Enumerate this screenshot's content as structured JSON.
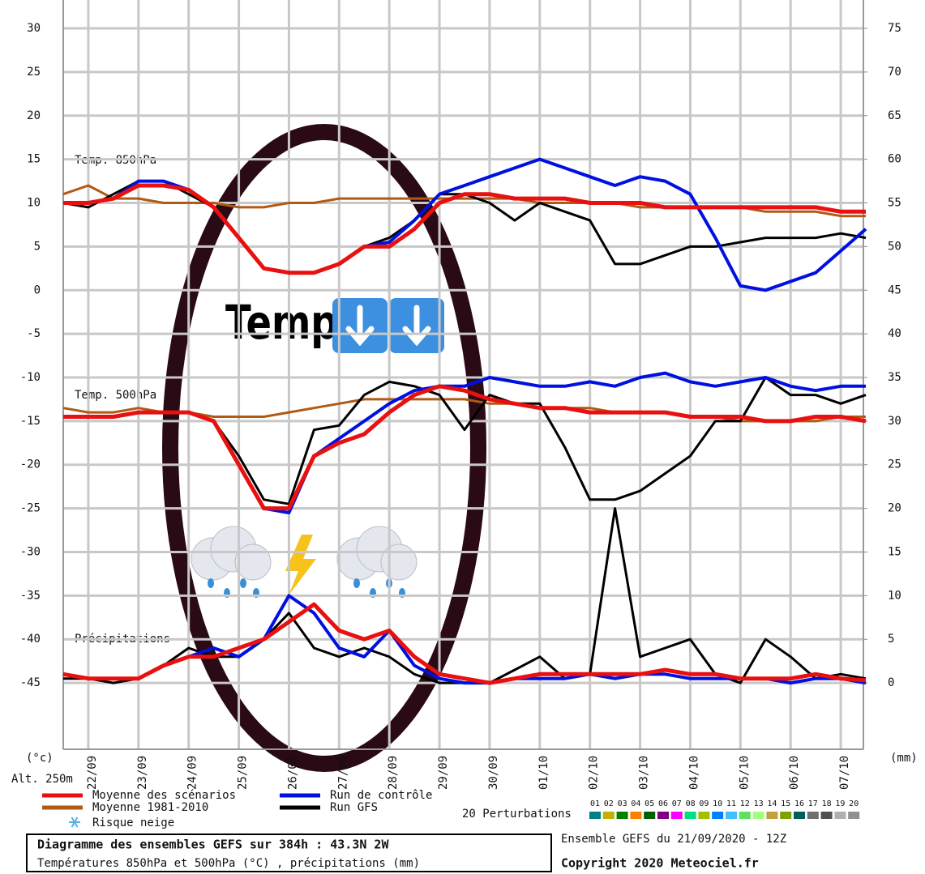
{
  "chart_data": {
    "type": "line",
    "labels": {
      "t850": "Temp. 850hPa",
      "t500": "Temp. 500hPa",
      "precip": "Précipitations",
      "y_unit": "(°c)",
      "y2_unit": "(mm)",
      "altitude": "Alt. 250m"
    },
    "annotation": "Temp",
    "x": [
      0,
      12,
      24,
      36,
      48,
      60,
      72,
      84,
      96,
      108,
      120,
      132,
      144,
      156,
      168,
      180,
      192,
      204,
      216,
      228,
      240,
      252,
      264,
      276,
      288,
      300,
      312,
      324,
      336,
      348,
      360,
      372,
      384
    ],
    "xlim": [
      0,
      384
    ],
    "xticks": [
      {
        "value": 12,
        "label": "22/09"
      },
      {
        "value": 36,
        "label": "23/09"
      },
      {
        "value": 60,
        "label": "24/09"
      },
      {
        "value": 84,
        "label": "25/09"
      },
      {
        "value": 108,
        "label": "26/09"
      },
      {
        "value": 132,
        "label": "27/09"
      },
      {
        "value": 156,
        "label": "28/09"
      },
      {
        "value": 180,
        "label": "29/09"
      },
      {
        "value": 204,
        "label": "30/09"
      },
      {
        "value": 228,
        "label": "01/10"
      },
      {
        "value": 252,
        "label": "02/10"
      },
      {
        "value": 276,
        "label": "03/10"
      },
      {
        "value": 300,
        "label": "04/10"
      },
      {
        "value": 324,
        "label": "05/10"
      },
      {
        "value": 348,
        "label": "06/10"
      },
      {
        "value": 372,
        "label": "07/10"
      }
    ],
    "ylim": [
      -52.6,
      33.25
    ],
    "yticks": [
      30,
      25,
      20,
      15,
      10,
      5,
      0,
      -5,
      -10,
      -15,
      -20,
      -25,
      -30,
      -35,
      -40,
      -45
    ],
    "y2lim": [
      -7.6,
      78.25
    ],
    "y2ticks": [
      75,
      70,
      65,
      60,
      55,
      50,
      45,
      40,
      35,
      30,
      25,
      20,
      15,
      10,
      5,
      0
    ],
    "grid": true,
    "series": [
      {
        "name": "Moyenne 1981-2010",
        "color": "#b05a14",
        "t850": [
          11,
          12,
          10.5,
          10.5,
          10,
          10,
          10,
          9.5,
          9.5,
          10,
          10,
          10.5,
          10.5,
          10.5,
          10.5,
          10.5,
          10.5,
          10.5,
          10.5,
          10,
          10,
          10,
          10,
          9.5,
          9.5,
          9.5,
          9.5,
          9.5,
          9,
          9,
          9,
          8.5,
          8.5
        ],
        "t500": [
          -13.5,
          -14,
          -14,
          -13.5,
          -14,
          -14,
          -14.5,
          -14.5,
          -14.5,
          -14,
          -13.5,
          -13,
          -12.5,
          -12.5,
          -12.5,
          -12.5,
          -12.5,
          -13,
          -13,
          -13.5,
          -13.5,
          -13.5,
          -14,
          -14,
          -14,
          -14.5,
          -14.5,
          -15,
          -15,
          -15,
          -15,
          -14.5,
          -14.5
        ]
      },
      {
        "name": "Run GFS",
        "color": "#000000",
        "t850": [
          10,
          9.5,
          11,
          12.5,
          12.5,
          11,
          9.5,
          6,
          2.5,
          2,
          2,
          3,
          5,
          6,
          8,
          11,
          11,
          10,
          8,
          10,
          9,
          8,
          3,
          3,
          4,
          5,
          5,
          5.5,
          6,
          6,
          6,
          6.5,
          6
        ],
        "t500": [
          -14.5,
          -14.5,
          -14.5,
          -14,
          -14,
          -14,
          -15,
          -19,
          -24,
          -24.5,
          -16,
          -15.5,
          -12,
          -10.5,
          -11,
          -12,
          -16,
          -12,
          -13,
          -13,
          -18,
          -24,
          -24,
          -23,
          -21,
          -19,
          -15,
          -15,
          -10,
          -12,
          -12,
          -13,
          -12
        ],
        "precip": [
          0.5,
          0.5,
          0,
          0.5,
          2,
          4,
          3,
          3,
          5,
          8,
          4,
          3,
          4,
          3,
          1,
          0,
          0,
          0,
          1.5,
          3,
          0.5,
          1,
          20,
          3,
          4,
          5,
          1,
          0,
          5,
          3,
          0.5,
          1,
          0.5
        ]
      },
      {
        "name": "Run de contrôle",
        "color": "#0010e0",
        "t850": [
          10,
          10,
          10.5,
          12.5,
          12.5,
          11.5,
          9.5,
          6,
          2.5,
          2,
          2,
          3,
          5,
          5.5,
          8,
          11,
          12,
          13,
          14,
          15,
          14,
          13,
          12,
          13,
          12.5,
          11,
          6,
          0.5,
          0,
          1,
          2,
          4.5,
          7
        ],
        "t500": [
          -14.5,
          -14.5,
          -14.5,
          -14,
          -14,
          -14,
          -15,
          -20,
          -25,
          -25.5,
          -19,
          -17,
          -15,
          -13,
          -11.5,
          -11,
          -11,
          -10,
          -10.5,
          -11,
          -11,
          -10.5,
          -11,
          -10,
          -9.5,
          -10.5,
          -11,
          -10.5,
          -10,
          -11,
          -11.5,
          -11,
          -11
        ],
        "precip": [
          1,
          0.5,
          0.5,
          0.5,
          2,
          3,
          4,
          3,
          5,
          10,
          8,
          4,
          3,
          6,
          2,
          0.5,
          0,
          0,
          0.5,
          0.5,
          0.5,
          1,
          0.5,
          1,
          1,
          0.5,
          0.5,
          0.5,
          0.5,
          0,
          0.5,
          0.5,
          0
        ]
      },
      {
        "name": "Moyenne des scénarios",
        "color": "#e81010",
        "t850": [
          10,
          10,
          10.5,
          12,
          12,
          11.5,
          9.5,
          6,
          2.5,
          2,
          2,
          3,
          5,
          5,
          7,
          10,
          11,
          11,
          10.5,
          10.5,
          10.5,
          10,
          10,
          10,
          9.5,
          9.5,
          9.5,
          9.5,
          9.5,
          9.5,
          9.5,
          9,
          9
        ],
        "t500": [
          -14.5,
          -14.5,
          -14.5,
          -14,
          -14,
          -14,
          -15,
          -20,
          -25,
          -25,
          -19,
          -17.5,
          -16.5,
          -14,
          -12,
          -11,
          -11.5,
          -12.5,
          -13,
          -13.5,
          -13.5,
          -14,
          -14,
          -14,
          -14,
          -14.5,
          -14.5,
          -14.5,
          -15,
          -15,
          -14.5,
          -14.5,
          -15
        ],
        "precip": [
          1,
          0.5,
          0.5,
          0.5,
          2,
          3,
          3,
          4,
          5,
          7,
          9,
          6,
          5,
          6,
          3,
          1,
          0.5,
          0,
          0.5,
          1,
          1,
          1,
          1,
          1,
          1.5,
          1,
          1,
          0.5,
          0.5,
          0.5,
          1,
          0.5,
          0.3
        ]
      }
    ],
    "snow_label": "Risque neige",
    "perturbations": {
      "title": "20 Perturbations",
      "labels": [
        "01",
        "02",
        "03",
        "04",
        "05",
        "06",
        "07",
        "08",
        "09",
        "10",
        "11",
        "12",
        "13",
        "14",
        "15",
        "16",
        "17",
        "18",
        "19",
        "20"
      ],
      "colors": [
        "#008080",
        "#c0b000",
        "#008000",
        "#ff8000",
        "#006000",
        "#800080",
        "#ff00ff",
        "#00e080",
        "#a0c000",
        "#0080ff",
        "#40c0ff",
        "#60e060",
        "#a0ff80",
        "#c0a040",
        "#80a000",
        "#006060",
        "#707070",
        "#505050",
        "#b0b0b0",
        "#909090"
      ]
    },
    "footer": {
      "title": "Diagramme des ensembles GEFS sur 384h : 43.3N 2W",
      "subtitle": "Températures 850hPa et 500hPa (°C) , précipitations (mm)",
      "run": "Ensemble GEFS du 21/09/2020 - 12Z",
      "copyright": "Copyright 2020 Meteociel.fr"
    }
  }
}
